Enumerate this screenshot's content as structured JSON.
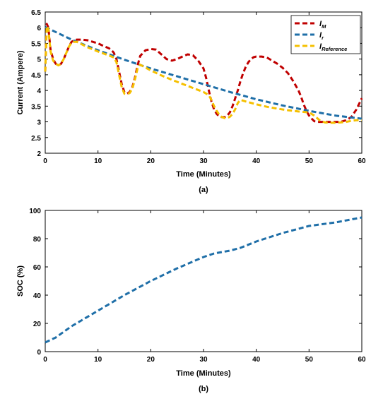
{
  "chart_data": [
    {
      "type": "line",
      "caption": "(a)",
      "xlabel": "Time (Minutes)",
      "ylabel": "Current (Ampere)",
      "xlim": [
        0,
        60
      ],
      "ylim": [
        2,
        6.5
      ],
      "xticks": [
        0,
        10,
        20,
        30,
        40,
        50,
        60
      ],
      "yticks": [
        2,
        2.5,
        3,
        3.5,
        4,
        4.5,
        5,
        5.5,
        6,
        6.5
      ],
      "grid": false,
      "legend_position": "top-right",
      "series": [
        {
          "name": "I",
          "subscript": "M",
          "color": "#c00000",
          "style": "dashed",
          "x": [
            0,
            0.3,
            0.6,
            1,
            1.5,
            2,
            2.5,
            3,
            3.5,
            4,
            4.5,
            5,
            5.5,
            6,
            7,
            8,
            9,
            10,
            11,
            12,
            12.5,
            13,
            13.5,
            14,
            14.5,
            15,
            15.5,
            16,
            16.5,
            17,
            17.5,
            18,
            19,
            20,
            21,
            22,
            23,
            24,
            25,
            26,
            27,
            28,
            29,
            30,
            30.5,
            31,
            31.5,
            32,
            32.5,
            33,
            33.5,
            34,
            34.5,
            35,
            35.5,
            36,
            36.5,
            37,
            37.5,
            38,
            38.5,
            39,
            39.5,
            40,
            41,
            42,
            43,
            44,
            45,
            46,
            47,
            48,
            48.5,
            49,
            49.5,
            50,
            50.5,
            51,
            51.5,
            52,
            52.5,
            53,
            53.5,
            54,
            54.5,
            55,
            56,
            57,
            58,
            59,
            60
          ],
          "y": [
            4.6,
            6.12,
            6.0,
            5.3,
            5.0,
            4.85,
            4.8,
            4.85,
            5.0,
            5.2,
            5.4,
            5.55,
            5.6,
            5.62,
            5.62,
            5.6,
            5.55,
            5.5,
            5.42,
            5.35,
            5.3,
            5.2,
            5.0,
            4.6,
            4.2,
            3.95,
            3.9,
            3.95,
            4.1,
            4.4,
            4.8,
            5.1,
            5.28,
            5.32,
            5.3,
            5.15,
            5.0,
            4.95,
            5.0,
            5.08,
            5.15,
            5.12,
            4.95,
            4.7,
            4.4,
            4.0,
            3.65,
            3.4,
            3.25,
            3.17,
            3.15,
            3.15,
            3.2,
            3.3,
            3.5,
            3.75,
            4.0,
            4.3,
            4.55,
            4.75,
            4.9,
            5.0,
            5.06,
            5.08,
            5.08,
            5.05,
            4.95,
            4.85,
            4.72,
            4.55,
            4.3,
            4.0,
            3.8,
            3.55,
            3.35,
            3.2,
            3.1,
            3.02,
            3.0,
            3.0,
            3.0,
            3.0,
            3.0,
            3.0,
            3.0,
            3.0,
            3.0,
            3.05,
            3.15,
            3.4,
            3.75
          ]
        },
        {
          "name": "I",
          "subscript": "r",
          "color": "#1f6fa8",
          "style": "dashed",
          "x": [
            0,
            5,
            10,
            15,
            20,
            25,
            30,
            35,
            40,
            45,
            50,
            55,
            60
          ],
          "y": [
            6.02,
            5.62,
            5.28,
            4.98,
            4.7,
            4.45,
            4.2,
            3.95,
            3.72,
            3.52,
            3.35,
            3.2,
            3.1
          ]
        },
        {
          "name": "I",
          "subscript": "Reference",
          "color": "#f5c000",
          "style": "dashed",
          "x": [
            0,
            0.3,
            0.6,
            1,
            1.5,
            2,
            2.5,
            3,
            3.5,
            4,
            4.5,
            5,
            5.5,
            6,
            8,
            10,
            12,
            13,
            13.5,
            14,
            14.5,
            15,
            15.5,
            16,
            16.5,
            17,
            17.5,
            18,
            20,
            22,
            24,
            26,
            28,
            30,
            31,
            31.5,
            32,
            32.5,
            33,
            33.5,
            34,
            34.5,
            35,
            35.5,
            36,
            36.5,
            37,
            38,
            40,
            42,
            44,
            46,
            48,
            50,
            51,
            52,
            53,
            54,
            55,
            56,
            57,
            58,
            59,
            60
          ],
          "y": [
            4.6,
            6.05,
            5.95,
            5.25,
            4.95,
            4.85,
            4.8,
            4.85,
            5.0,
            5.2,
            5.4,
            5.52,
            5.55,
            5.55,
            5.38,
            5.24,
            5.12,
            5.05,
            4.9,
            4.5,
            4.1,
            3.9,
            3.88,
            3.92,
            4.05,
            4.35,
            4.7,
            4.82,
            4.64,
            4.48,
            4.34,
            4.21,
            4.08,
            3.95,
            3.85,
            3.7,
            3.5,
            3.35,
            3.22,
            3.15,
            3.12,
            3.12,
            3.16,
            3.25,
            3.4,
            3.6,
            3.7,
            3.65,
            3.56,
            3.48,
            3.42,
            3.37,
            3.33,
            3.3,
            3.2,
            3.05,
            2.98,
            2.97,
            2.97,
            2.98,
            3.0,
            3.03,
            3.05,
            3.05
          ]
        }
      ]
    },
    {
      "type": "line",
      "caption": "(b)",
      "xlabel": "Time (Minutes)",
      "ylabel": "SOC (%)",
      "xlim": [
        0,
        60
      ],
      "ylim": [
        0,
        100
      ],
      "xticks": [
        0,
        10,
        20,
        30,
        40,
        50,
        60
      ],
      "yticks": [
        0,
        20,
        40,
        60,
        80,
        100
      ],
      "grid": false,
      "series": [
        {
          "color": "#1f6fa8",
          "style": "dashed",
          "x": [
            0,
            2,
            5,
            10,
            15,
            20,
            25,
            30,
            32,
            35,
            37,
            40,
            45,
            50,
            55,
            60
          ],
          "y": [
            6.5,
            10,
            18,
            29,
            40,
            50,
            59,
            67,
            69.5,
            71.5,
            73.5,
            78,
            84,
            89,
            91.5,
            95
          ]
        }
      ]
    }
  ]
}
